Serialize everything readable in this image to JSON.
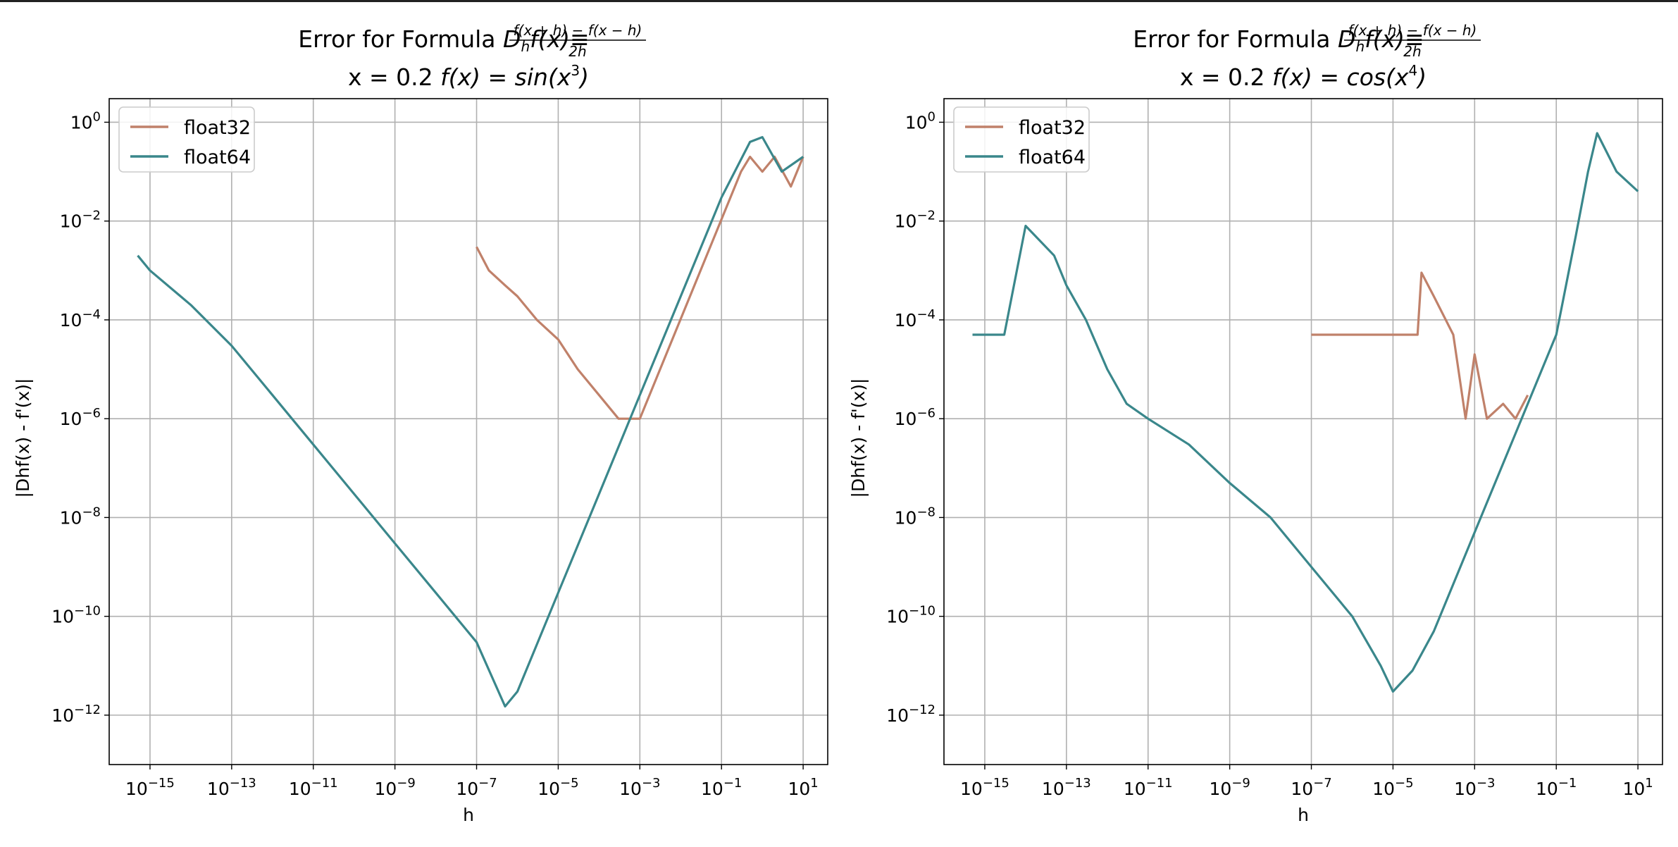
{
  "colors": {
    "float32": "#c0816a",
    "float64": "#3a878b",
    "grid": "#b0b0b0"
  },
  "chart_data": [
    {
      "type": "line",
      "title": {
        "line1_prefix": "Error for Formula ",
        "formula_lhs_D": "D",
        "formula_lhs_sub": "h",
        "formula_lhs_rest": "f(x)",
        "equiv": "≡",
        "fraction_num": "f(x + h) − f(x − h)",
        "fraction_den": "2h",
        "line2_prefix": "x = 0.2  ",
        "line2_func": "f(x) = sin(x",
        "line2_exp": "3",
        "line2_close": ")"
      },
      "xlabel": "h",
      "ylabel": "|Dhf(x) - f'(x)|",
      "xscale": "log",
      "yscale": "log",
      "xlim": [
        1e-16,
        40
      ],
      "ylim": [
        1e-13,
        3
      ],
      "xticks": [
        "10",
        "10",
        "10",
        "10",
        "10",
        "10",
        "10",
        "10",
        "10"
      ],
      "xtick_exps": [
        "−15",
        "−13",
        "−11",
        "−9",
        "−7",
        "−5",
        "−3",
        "−1",
        "1"
      ],
      "xtick_values": [
        1e-15,
        1e-13,
        1e-11,
        1e-09,
        1e-07,
        1e-05,
        0.001,
        0.1,
        10
      ],
      "yticks": [
        "10",
        "10",
        "10",
        "10",
        "10",
        "10",
        "10"
      ],
      "ytick_exps": [
        "−12",
        "−10",
        "−8",
        "−6",
        "−4",
        "−2",
        "0"
      ],
      "ytick_values": [
        1e-12,
        1e-10,
        1e-08,
        1e-06,
        0.0001,
        0.01,
        1
      ],
      "grid": true,
      "legend": "top-left",
      "series": [
        {
          "name": "float32",
          "x": [
            1e-07,
            2e-07,
            5e-07,
            1e-06,
            3e-06,
            1e-05,
            3e-05,
            0.0001,
            0.0003,
            0.001,
            0.3,
            0.5,
            1,
            2,
            5,
            10
          ],
          "y": [
            0.003,
            0.001,
            0.0005,
            0.0003,
            0.0001,
            4e-05,
            1e-05,
            3e-06,
            1e-06,
            1e-06,
            0.1,
            0.2,
            0.1,
            0.2,
            0.05,
            0.2
          ]
        },
        {
          "name": "float64",
          "x": [
            5e-16,
            1e-15,
            1e-14,
            1e-13,
            1e-12,
            1e-11,
            1e-10,
            1e-09,
            1e-08,
            1e-07,
            5e-07,
            1e-06,
            1e-05,
            0.0001,
            0.001,
            0.01,
            0.1,
            0.5,
            1,
            3,
            10
          ],
          "y": [
            0.002,
            0.001,
            0.0002,
            3e-05,
            3e-06,
            3e-07,
            3e-08,
            3e-09,
            3e-10,
            3e-11,
            1.5e-12,
            3e-12,
            3e-10,
            3e-08,
            3e-06,
            0.0003,
            0.03,
            0.4,
            0.5,
            0.1,
            0.2
          ]
        }
      ]
    },
    {
      "type": "line",
      "title": {
        "line1_prefix": "Error for Formula ",
        "formula_lhs_D": "D",
        "formula_lhs_sub": "h",
        "formula_lhs_rest": "f(x)",
        "equiv": "≡",
        "fraction_num": "f(x + h) − f(x − h)",
        "fraction_den": "2h",
        "line2_prefix": "x = 0.2  ",
        "line2_func": "f(x) = cos(x",
        "line2_exp": "4",
        "line2_close": ")"
      },
      "xlabel": "h",
      "ylabel": "|Dhf(x) - f'(x)|",
      "xscale": "log",
      "yscale": "log",
      "xlim": [
        1e-16,
        40
      ],
      "ylim": [
        1e-13,
        3
      ],
      "xticks": [
        "10",
        "10",
        "10",
        "10",
        "10",
        "10",
        "10",
        "10",
        "10"
      ],
      "xtick_exps": [
        "−15",
        "−13",
        "−11",
        "−9",
        "−7",
        "−5",
        "−3",
        "−1",
        "1"
      ],
      "xtick_values": [
        1e-15,
        1e-13,
        1e-11,
        1e-09,
        1e-07,
        1e-05,
        0.001,
        0.1,
        10
      ],
      "yticks": [
        "10",
        "10",
        "10",
        "10",
        "10",
        "10",
        "10"
      ],
      "ytick_exps": [
        "−12",
        "−10",
        "−8",
        "−6",
        "−4",
        "−2",
        "0"
      ],
      "ytick_values": [
        1e-12,
        1e-10,
        1e-08,
        1e-06,
        0.0001,
        0.01,
        1
      ],
      "grid": true,
      "legend": "top-left",
      "series": [
        {
          "name": "float32",
          "x": [
            1e-07,
            3e-07,
            1e-06,
            5e-06,
            2e-05,
            4e-05,
            5e-05,
            0.0001,
            0.0003,
            0.0006,
            0.001,
            0.002,
            0.005,
            0.01,
            0.02
          ],
          "y": [
            5e-05,
            5e-05,
            5e-05,
            5e-05,
            5e-05,
            5e-05,
            0.0009,
            0.0003,
            5e-05,
            1e-06,
            2e-05,
            1e-06,
            2e-06,
            1e-06,
            3e-06
          ]
        },
        {
          "name": "float64",
          "x": [
            5e-16,
            1e-15,
            2e-15,
            3e-15,
            1e-14,
            5e-14,
            1e-13,
            3e-13,
            1e-12,
            3e-12,
            1e-11,
            1e-10,
            1e-09,
            1e-08,
            1e-07,
            1e-06,
            5e-06,
            1e-05,
            3e-05,
            0.0001,
            0.001,
            0.01,
            0.1,
            0.3,
            0.6,
            1,
            3,
            10
          ],
          "y": [
            5e-05,
            5e-05,
            5e-05,
            5e-05,
            0.008,
            0.002,
            0.0005,
            0.0001,
            1e-05,
            2e-06,
            1e-06,
            3e-07,
            5e-08,
            1e-08,
            1e-09,
            1e-10,
            1e-11,
            3e-12,
            8e-12,
            5e-11,
            5e-09,
            5e-07,
            5e-05,
            0.005,
            0.1,
            0.6,
            0.1,
            0.04
          ]
        }
      ]
    }
  ]
}
